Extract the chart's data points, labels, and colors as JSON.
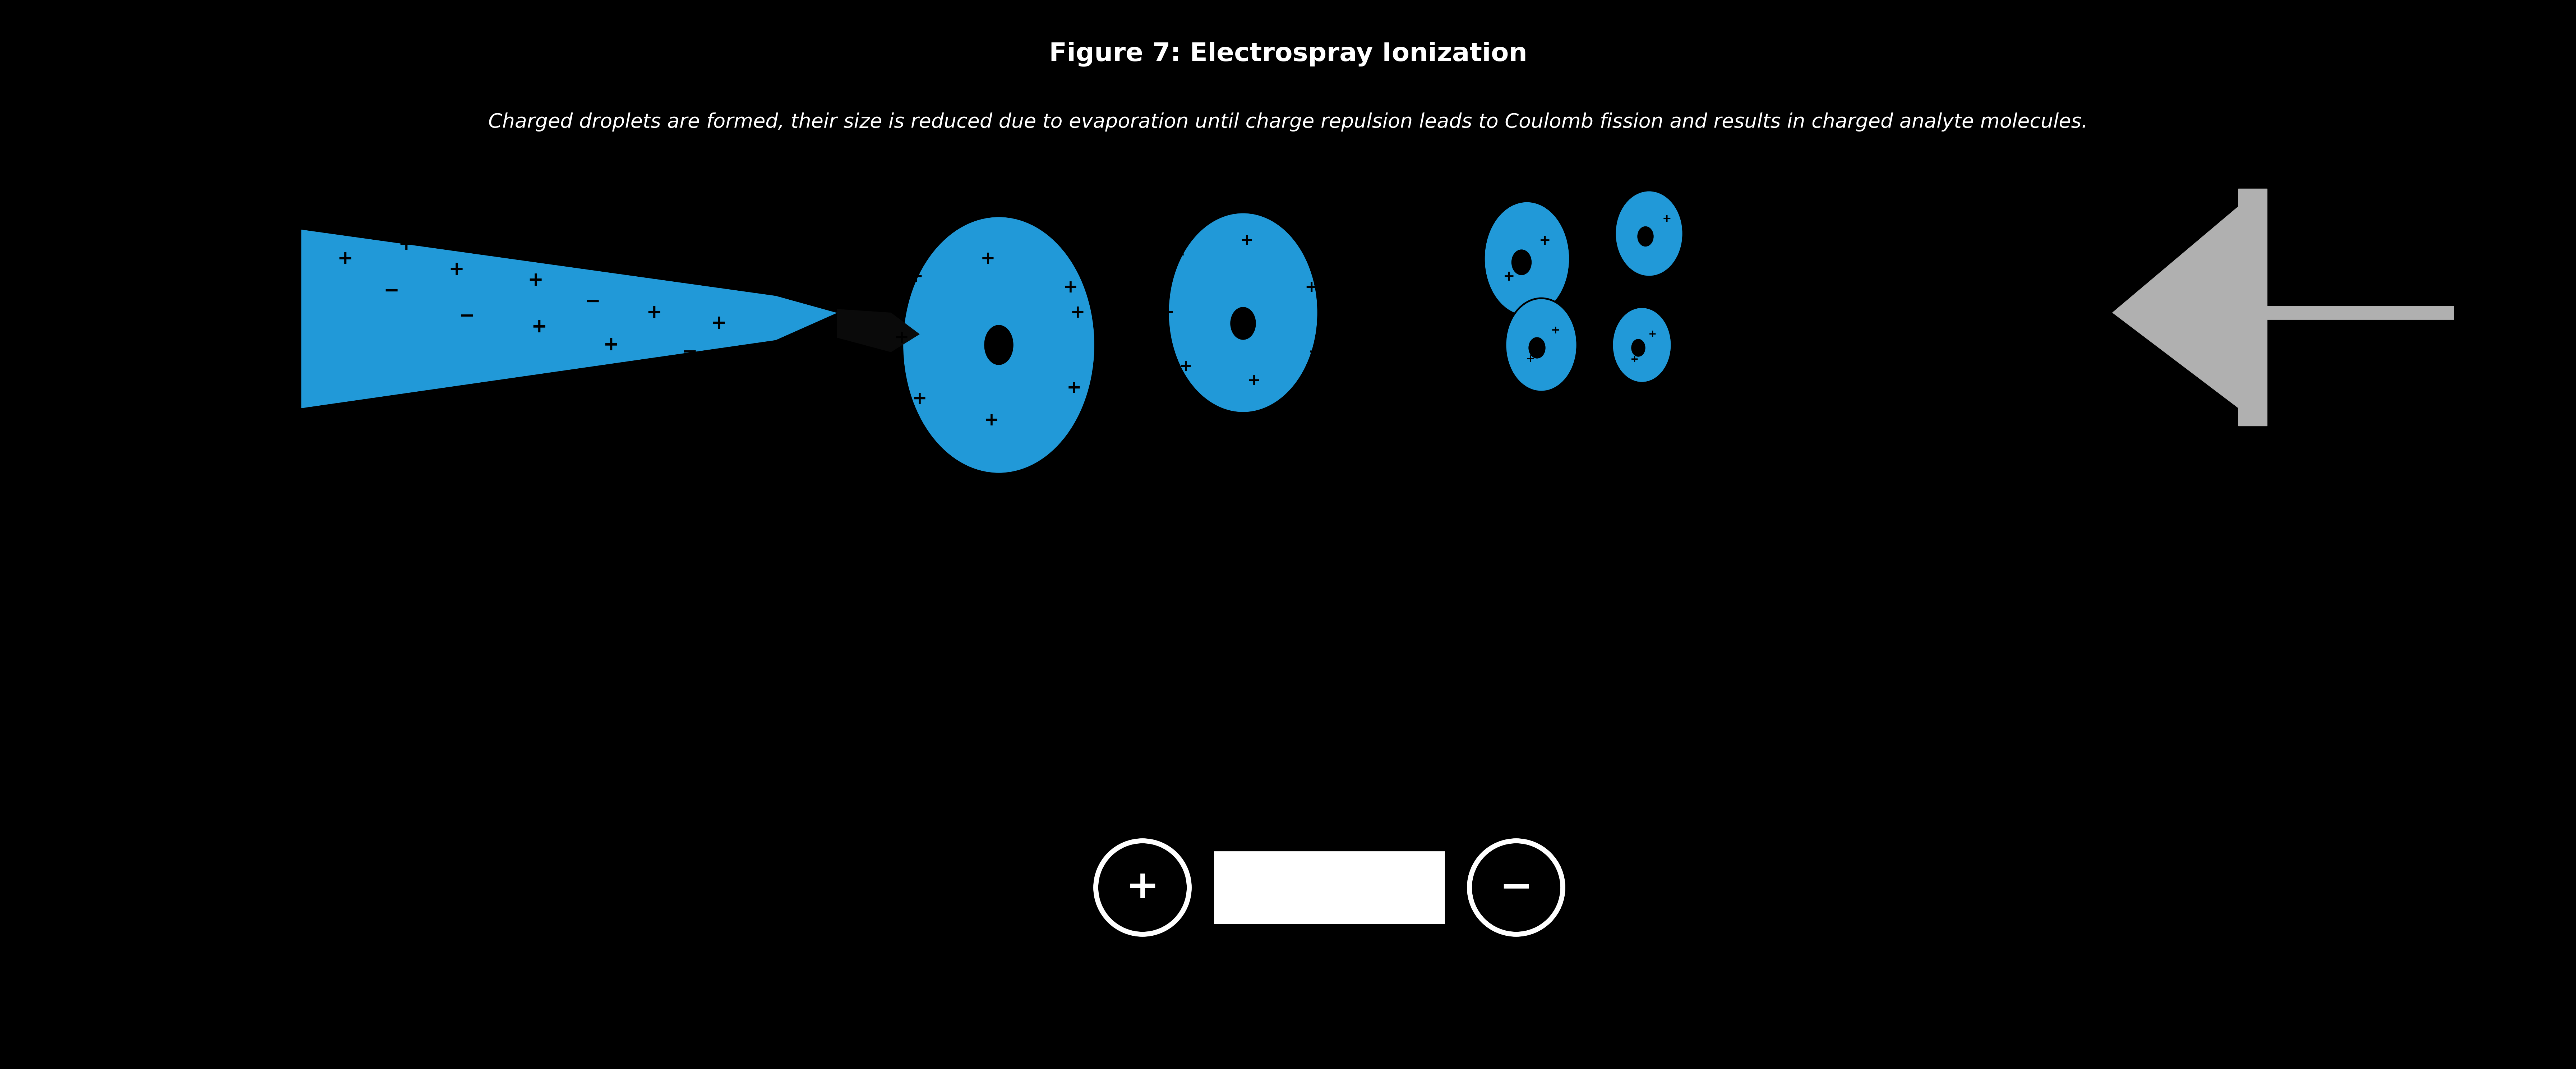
{
  "bg_color": "#000000",
  "blue": "#2199D8",
  "gray": "#b0b0b0",
  "white": "#ffffff",
  "black": "#000000",
  "fig_width": 71.71,
  "fig_height": 29.75,
  "title": "Figure 7: Electrospray Ionization",
  "subtitle": "Charged droplets are formed, their size is reduced due to evaporation until charge repulsion leads to Coulomb fission and results in charged analyte molecules.",
  "title_fontsize": 52,
  "subtitle_fontsize": 40
}
